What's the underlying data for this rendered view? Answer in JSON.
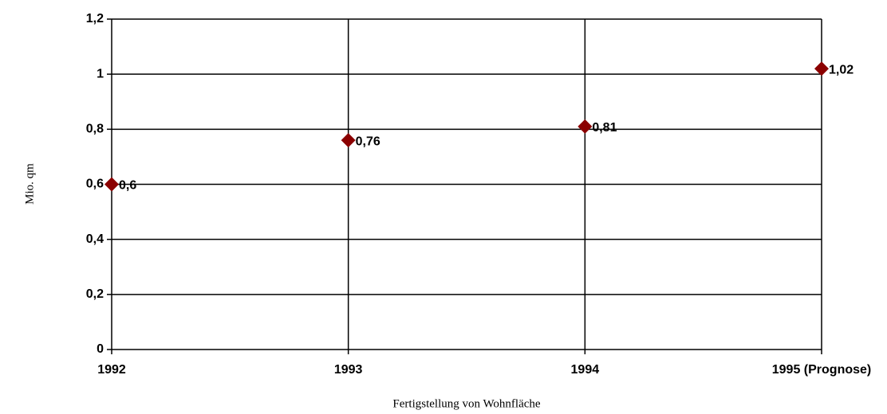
{
  "chart_data": {
    "type": "line",
    "x_label": "Fertigstellung von Wohnfläche",
    "y_label": "Mio. qm",
    "categories": [
      "1992",
      "1993",
      "1994",
      "1995 (Prognose)"
    ],
    "series": [
      {
        "name": null,
        "color": "#800000",
        "marker_color": "#8b0000",
        "values": [
          0.6,
          0.76,
          0.81,
          1.02
        ],
        "value_labels": [
          "0,6",
          "0,76",
          "0,81",
          "1,02"
        ]
      }
    ],
    "ylim": [
      0,
      1.2
    ],
    "yticks": [
      0,
      {
        "value": 0.2,
        "label": "0,2"
      },
      {
        "value": 0.4,
        "label": "0,4"
      },
      {
        "value": 0.6,
        "label": "0,6"
      },
      {
        "value": 0.8,
        "label": "0,8"
      },
      1,
      {
        "value": 1.2,
        "label": "1,2"
      }
    ],
    "grid": true
  }
}
